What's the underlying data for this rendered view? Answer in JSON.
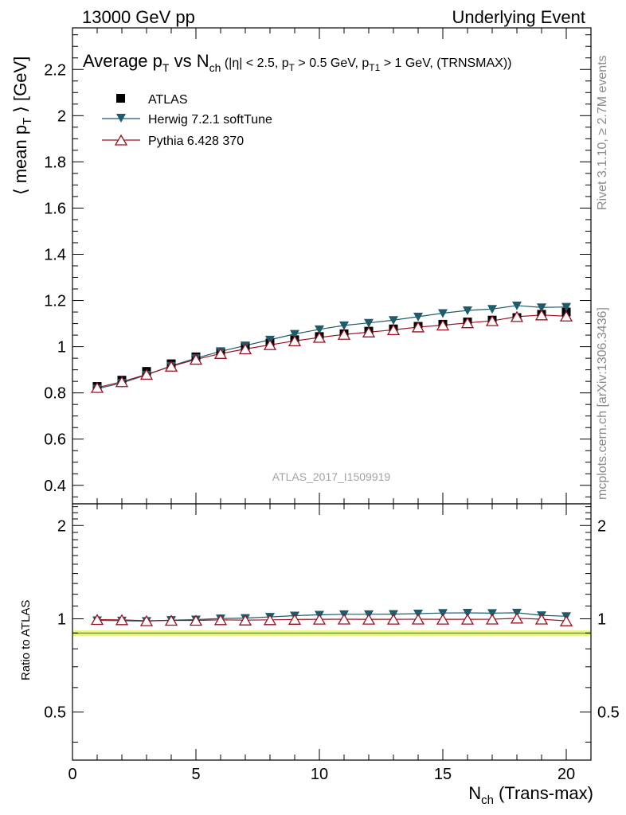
{
  "header": {
    "left": "13000 GeV pp",
    "right": "Underlying Event"
  },
  "title": {
    "main": "Average p",
    "main_sub": "T",
    "vs": " vs N",
    "vs_sub": "ch",
    "cuts_a": " (|η| < 2.5, p",
    "cuts_a_sub": "T",
    "cuts_b": " > 0.5 GeV, p",
    "cuts_b_sub": "T1",
    "cuts_c": " > 1 GeV, (TRNSMAX))"
  },
  "side_labels": {
    "rivet": "Rivet 3.1.10, ≥ 2.7M events",
    "mcplots": "mcplots.cern.ch [arXiv:1306.3436]"
  },
  "watermark": "ATLAS_2017_I1509919",
  "axes": {
    "ylabel_top_a": "⟨ mean p",
    "ylabel_top_sub": "T",
    "ylabel_top_b": " ⟩ [GeV]",
    "ylabel_bottom": "Ratio to ATLAS",
    "xlabel_a": "N",
    "xlabel_sub": "ch",
    "xlabel_b": " (Trans-max)"
  },
  "legend": [
    {
      "label": "ATLAS",
      "marker": "square",
      "color": "#000000"
    },
    {
      "label": "Herwig 7.2.1 softTune",
      "marker": "triangle-down",
      "color": "#1e5c6b"
    },
    {
      "label": "Pythia 6.428 370",
      "marker": "triangle-up-open",
      "color": "#9b1020"
    }
  ],
  "chart_data": [
    {
      "type": "scatter",
      "panel": "main",
      "xlim": [
        0,
        21
      ],
      "ylim": [
        0.32,
        2.38
      ],
      "yticks": [
        0.4,
        0.6,
        0.8,
        1,
        1.2,
        1.4,
        1.6,
        1.8,
        2,
        2.2
      ],
      "ytick_labels": [
        "0.4",
        "0.6",
        "0.8",
        "1",
        "1.2",
        "1.4",
        "1.6",
        "1.8",
        "2",
        "2.2"
      ],
      "x": [
        1,
        2,
        3,
        4,
        5,
        6,
        7,
        8,
        9,
        10,
        11,
        12,
        13,
        14,
        15,
        16,
        17,
        18,
        19,
        20
      ],
      "series": [
        {
          "name": "ATLAS",
          "color": "#000000",
          "values": [
            0.828,
            0.855,
            0.893,
            0.926,
            0.956,
            0.978,
            1.0,
            1.016,
            1.03,
            1.044,
            1.056,
            1.067,
            1.077,
            1.088,
            1.097,
            1.107,
            1.115,
            1.126,
            1.14,
            1.15
          ]
        },
        {
          "name": "Herwig 7.2.1 softTune",
          "color": "#1e5c6b",
          "values": [
            0.818,
            0.843,
            0.878,
            0.917,
            0.95,
            0.98,
            1.005,
            1.03,
            1.055,
            1.075,
            1.092,
            1.103,
            1.115,
            1.13,
            1.145,
            1.157,
            1.163,
            1.178,
            1.17,
            1.172
          ]
        },
        {
          "name": "Pythia 6.428 370",
          "color": "#9b1020",
          "values": [
            0.823,
            0.848,
            0.88,
            0.915,
            0.945,
            0.97,
            0.99,
            1.008,
            1.025,
            1.04,
            1.053,
            1.063,
            1.073,
            1.085,
            1.093,
            1.103,
            1.112,
            1.13,
            1.137,
            1.132
          ]
        }
      ]
    },
    {
      "type": "line",
      "panel": "ratio",
      "xlim": [
        0,
        21
      ],
      "ylim": [
        0.35,
        2.35
      ],
      "log_y": true,
      "yticks": [
        0.5,
        1,
        2
      ],
      "ytick_labels": [
        "0.5",
        "1",
        "2"
      ],
      "xticks": [
        0,
        5,
        10,
        15,
        20
      ],
      "xtick_labels": [
        "0",
        "5",
        "10",
        "15",
        "20"
      ],
      "x": [
        1,
        2,
        3,
        4,
        5,
        6,
        7,
        8,
        9,
        10,
        11,
        12,
        13,
        14,
        15,
        16,
        17,
        18,
        19,
        20
      ],
      "series": [
        {
          "name": "Herwig 7.2.1 softTune",
          "color": "#1e5c6b",
          "values": [
            0.988,
            0.986,
            0.983,
            0.99,
            0.994,
            1.002,
            1.005,
            1.014,
            1.024,
            1.03,
            1.034,
            1.034,
            1.035,
            1.039,
            1.044,
            1.045,
            1.043,
            1.046,
            1.026,
            1.019
          ]
        },
        {
          "name": "Pythia 6.428 370",
          "color": "#9b1020",
          "values": [
            0.994,
            0.992,
            0.985,
            0.988,
            0.988,
            0.992,
            0.99,
            0.992,
            0.995,
            0.996,
            0.997,
            0.996,
            0.996,
            0.997,
            0.996,
            0.996,
            0.997,
            1.004,
            0.997,
            0.984
          ]
        }
      ]
    }
  ]
}
